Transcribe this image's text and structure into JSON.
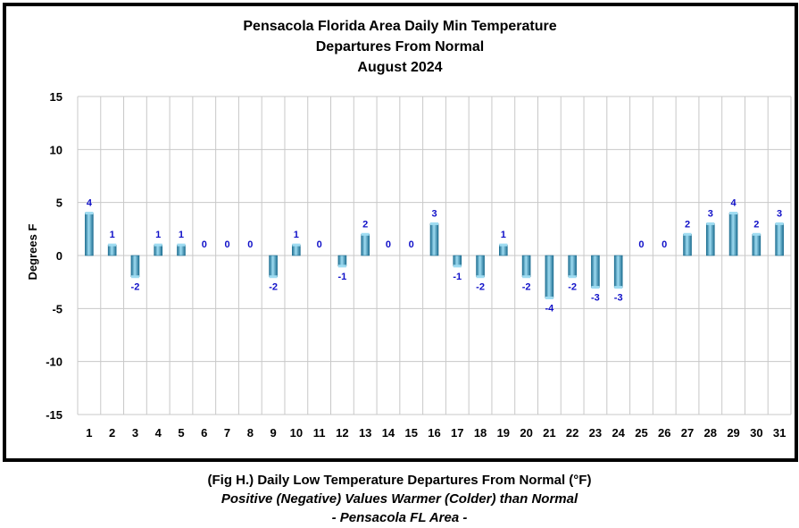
{
  "chart_data": {
    "type": "bar",
    "title": [
      "Pensacola Florida Area Daily Min Temperature",
      "Departures From Normal",
      "August 2024"
    ],
    "ylabel": "Degrees F",
    "xlabel": "",
    "ylim": [
      -15,
      15
    ],
    "yticks": [
      15,
      10,
      5,
      0,
      -5,
      -10,
      -15
    ],
    "categories": [
      "1",
      "2",
      "3",
      "4",
      "5",
      "6",
      "7",
      "8",
      "9",
      "10",
      "11",
      "12",
      "13",
      "14",
      "15",
      "16",
      "17",
      "18",
      "19",
      "20",
      "21",
      "22",
      "23",
      "24",
      "25",
      "26",
      "27",
      "28",
      "29",
      "30",
      "31"
    ],
    "values": [
      4,
      1,
      -2,
      1,
      1,
      0,
      0,
      0,
      -2,
      1,
      0,
      -1,
      2,
      0,
      0,
      3,
      -1,
      -2,
      1,
      -2,
      -4,
      -2,
      -3,
      -3,
      0,
      0,
      2,
      3,
      4,
      2,
      3
    ],
    "grid": true,
    "colors": {
      "bar": "#3a9cc4",
      "bar_light": "#9fdcf2",
      "bar_dark": "#1e6f92",
      "data_label": "#1010c8",
      "grid": "#c8c8c8"
    }
  },
  "caption": {
    "line1": "(Fig H.) Daily Low Temperature Departures From Normal (°F)",
    "line2": "Positive (Negative) Values Warmer (Colder) than Normal",
    "line3": "- Pensacola FL Area -"
  }
}
